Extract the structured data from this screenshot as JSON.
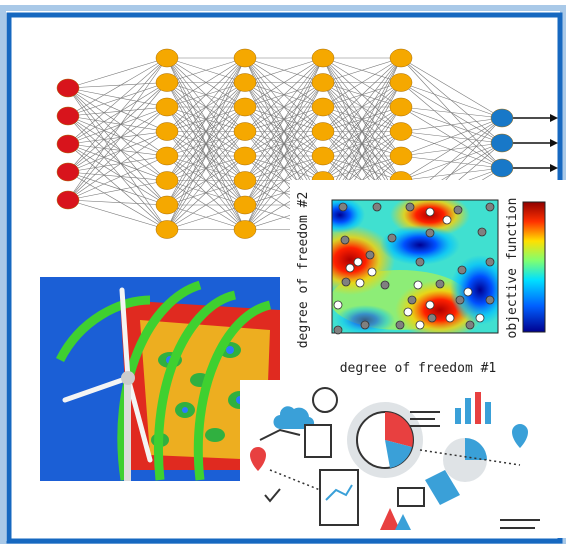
{
  "heatmap": {
    "y_label": "degree of freedom #2",
    "x_label": "degree of freedom #1",
    "colorbar_label": "objective function"
  }
}
